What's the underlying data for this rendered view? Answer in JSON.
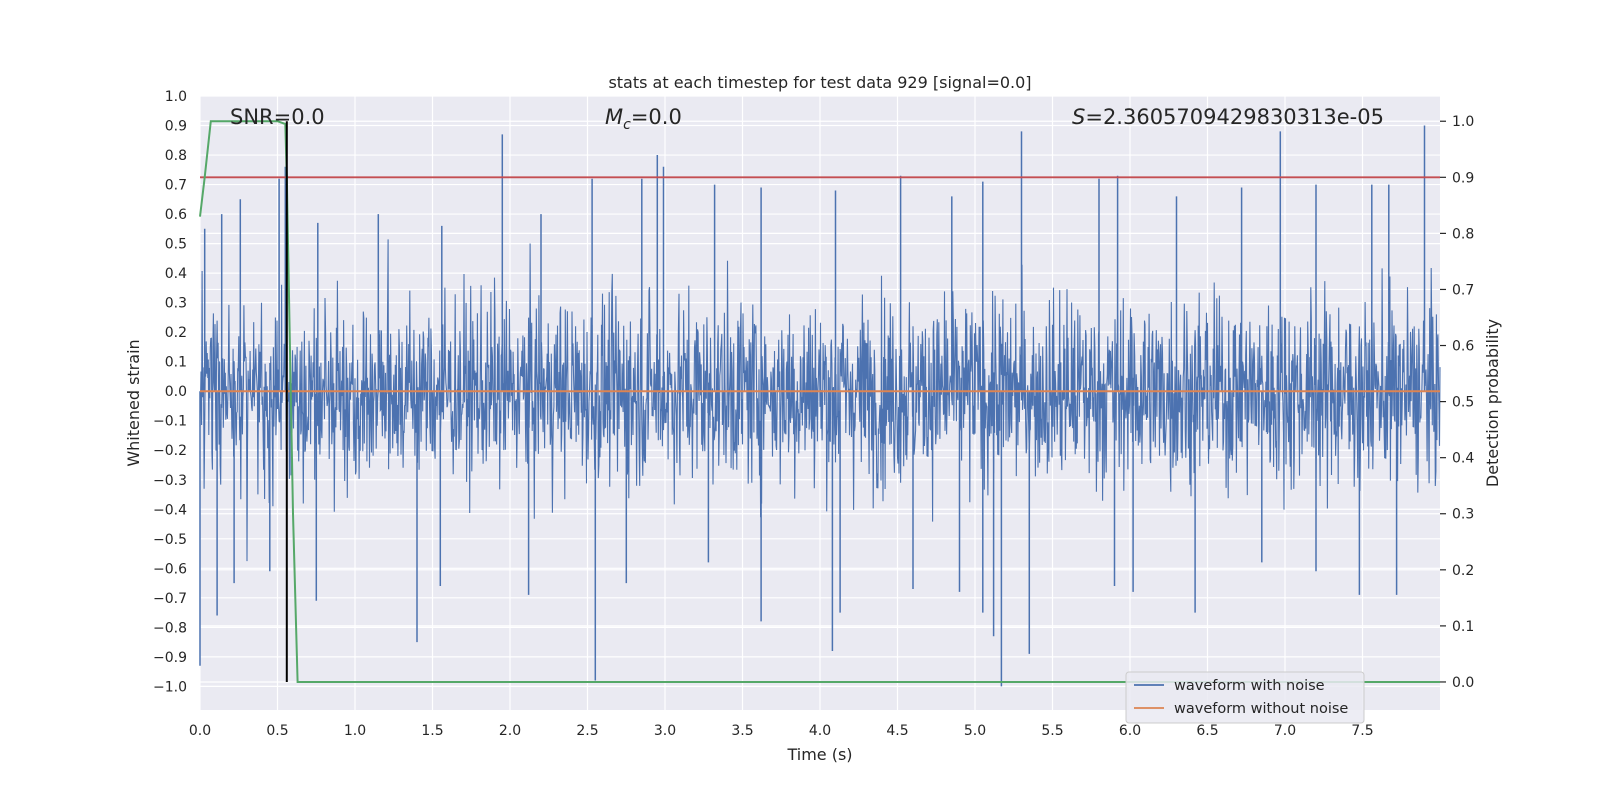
{
  "chart_data": {
    "type": "line",
    "title": "stats at each timestep for test data 929 [signal=0.0]",
    "xlabel": "Time (s)",
    "ylabel": "Whitened strain",
    "ylabel_right": "Detection probability",
    "xlim": [
      0.0,
      8.0
    ],
    "ylim": [
      -1.08,
      1.0
    ],
    "ylim_right": [
      -0.05,
      1.045
    ],
    "x_ticks": [
      "0.0",
      "0.5",
      "1.0",
      "1.5",
      "2.0",
      "2.5",
      "3.0",
      "3.5",
      "4.0",
      "4.5",
      "5.0",
      "5.5",
      "6.0",
      "6.5",
      "7.0",
      "7.5"
    ],
    "x_tick_values": [
      0,
      0.5,
      1,
      1.5,
      2,
      2.5,
      3,
      3.5,
      4,
      4.5,
      5,
      5.5,
      6,
      6.5,
      7,
      7.5
    ],
    "y_ticks": [
      "1.0",
      "0.9",
      "0.8",
      "0.7",
      "0.6",
      "0.5",
      "0.4",
      "0.3",
      "0.2",
      "0.1",
      "0.0",
      "−0.1",
      "−0.2",
      "−0.3",
      "−0.4",
      "−0.5",
      "−0.6",
      "−0.7",
      "−0.8",
      "−0.9",
      "−1.0"
    ],
    "y_tick_values": [
      1.0,
      0.9,
      0.8,
      0.7,
      0.6,
      0.5,
      0.4,
      0.3,
      0.2,
      0.1,
      0.0,
      -0.1,
      -0.2,
      -0.3,
      -0.4,
      -0.5,
      -0.6,
      -0.7,
      -0.8,
      -0.9,
      -1.0
    ],
    "y2_ticks": [
      "1.0",
      "0.9",
      "0.8",
      "0.7",
      "0.6",
      "0.5",
      "0.4",
      "0.3",
      "0.2",
      "0.1",
      "0.0"
    ],
    "y2_tick_values": [
      1.0,
      0.9,
      0.8,
      0.7,
      0.6,
      0.5,
      0.4,
      0.3,
      0.2,
      0.1,
      0.0
    ],
    "annotations": {
      "snr": "SNR=0.0",
      "mc_symbol": "M",
      "mc_sub": "c",
      "mc_value": "=0.0",
      "s_symbol": "S",
      "s_value": "=2.3605709429830313e-05"
    },
    "series": [
      {
        "name": "waveform with noise",
        "color": "#4c72b0",
        "axis": "left",
        "description": "noisy whitened strain, amplitude roughly within -0.6 to 0.6 with spikes",
        "spikes_up": [
          [
            0.03,
            0.55
          ],
          [
            0.14,
            0.6
          ],
          [
            0.26,
            0.65
          ],
          [
            0.51,
            0.72
          ],
          [
            0.55,
            0.76
          ],
          [
            0.76,
            0.57
          ],
          [
            1.15,
            0.6
          ],
          [
            1.56,
            0.56
          ],
          [
            1.95,
            0.87
          ],
          [
            2.2,
            0.6
          ],
          [
            2.53,
            0.72
          ],
          [
            2.85,
            0.72
          ],
          [
            2.95,
            0.8
          ],
          [
            2.99,
            0.76
          ],
          [
            3.32,
            0.7
          ],
          [
            3.62,
            0.69
          ],
          [
            4.1,
            0.68
          ],
          [
            4.52,
            0.73
          ],
          [
            4.85,
            0.66
          ],
          [
            5.05,
            0.71
          ],
          [
            5.3,
            0.88
          ],
          [
            5.8,
            0.72
          ],
          [
            5.92,
            0.73
          ],
          [
            6.3,
            0.66
          ],
          [
            6.72,
            0.69
          ],
          [
            6.97,
            0.88
          ],
          [
            7.2,
            0.7
          ],
          [
            7.56,
            0.7
          ],
          [
            7.67,
            0.7
          ],
          [
            7.9,
            0.9
          ]
        ],
        "spikes_down": [
          [
            0.0,
            -0.93
          ],
          [
            0.11,
            -0.76
          ],
          [
            0.22,
            -0.65
          ],
          [
            0.45,
            -0.61
          ],
          [
            0.75,
            -0.71
          ],
          [
            1.4,
            -0.85
          ],
          [
            1.55,
            -0.66
          ],
          [
            2.12,
            -0.69
          ],
          [
            2.55,
            -0.98
          ],
          [
            2.75,
            -0.65
          ],
          [
            3.28,
            -0.58
          ],
          [
            3.62,
            -0.78
          ],
          [
            4.08,
            -0.88
          ],
          [
            4.13,
            -0.75
          ],
          [
            4.6,
            -0.67
          ],
          [
            4.9,
            -0.68
          ],
          [
            5.05,
            -0.75
          ],
          [
            5.12,
            -0.83
          ],
          [
            5.17,
            -1.0
          ],
          [
            5.35,
            -0.89
          ],
          [
            5.9,
            -0.66
          ],
          [
            6.02,
            -0.68
          ],
          [
            6.42,
            -0.75
          ],
          [
            6.85,
            -0.58
          ],
          [
            7.2,
            -0.61
          ],
          [
            7.48,
            -0.69
          ],
          [
            7.72,
            -0.69
          ]
        ]
      },
      {
        "name": "waveform without noise",
        "color": "#dd8452",
        "axis": "left",
        "x": [
          0.0,
          8.0
        ],
        "y": [
          0.0,
          0.0
        ]
      },
      {
        "name": "detection probability",
        "color": "#55a868",
        "axis": "right",
        "x": [
          0.0,
          0.03,
          0.07,
          0.1,
          0.2,
          0.3,
          0.4,
          0.5,
          0.55,
          0.56,
          0.6,
          0.63,
          0.7,
          2.0,
          8.0
        ],
        "y": [
          0.83,
          0.9,
          1.0,
          1.0,
          1.0,
          1.0,
          1.0,
          1.0,
          0.995,
          0.9,
          0.3,
          0.0,
          0.0,
          0.0,
          0.0
        ]
      },
      {
        "name": "threshold",
        "color": "#c44e52",
        "axis": "right",
        "x": [
          0.0,
          8.0
        ],
        "y": [
          0.9,
          0.9
        ]
      },
      {
        "name": "trigger line",
        "color": "#000000",
        "axis": "right",
        "x": [
          0.56,
          0.56
        ],
        "y": [
          0.0,
          1.0
        ]
      }
    ],
    "legend": {
      "placement": "lower-right",
      "entries": [
        {
          "label": "waveform with noise",
          "color": "#4c72b0"
        },
        {
          "label": "waveform without noise",
          "color": "#dd8452"
        }
      ]
    },
    "grid": true
  }
}
